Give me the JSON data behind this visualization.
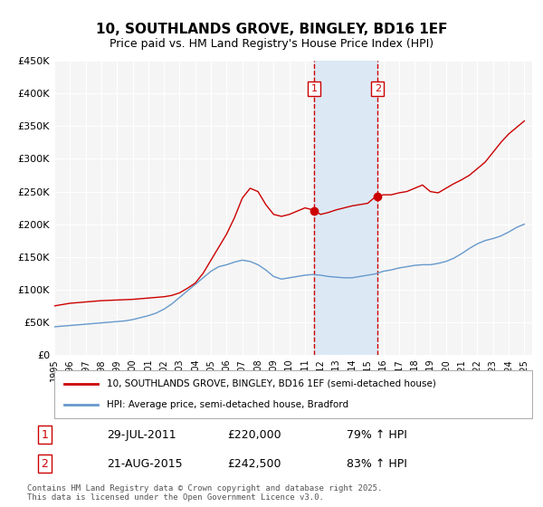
{
  "title": "10, SOUTHLANDS GROVE, BINGLEY, BD16 1EF",
  "subtitle": "Price paid vs. HM Land Registry's House Price Index (HPI)",
  "title_fontsize": 11,
  "subtitle_fontsize": 9,
  "bg_color": "#ffffff",
  "plot_bg_color": "#f5f5f5",
  "grid_color": "#ffffff",
  "red_line_color": "#cc0000",
  "blue_line_color": "#6699cc",
  "shade_color": "#dce9f5",
  "vline_color": "#cc0000",
  "marker1_x": 2011.57,
  "marker1_y": 220000,
  "marker2_x": 2015.64,
  "marker2_y": 242500,
  "marker1_label": "1",
  "marker2_label": "2",
  "vline1_x": 2011.57,
  "vline2_x": 2015.64,
  "xmin": 1995,
  "xmax": 2025.5,
  "ymin": 0,
  "ymax": 450000,
  "yticks": [
    0,
    50000,
    100000,
    150000,
    200000,
    250000,
    300000,
    350000,
    400000,
    450000
  ],
  "ytick_labels": [
    "£0",
    "£50K",
    "£100K",
    "£150K",
    "£200K",
    "£250K",
    "£300K",
    "£350K",
    "£400K",
    "£450K"
  ],
  "xticks": [
    1995,
    1996,
    1997,
    1998,
    1999,
    2000,
    2001,
    2002,
    2003,
    2004,
    2005,
    2006,
    2007,
    2008,
    2009,
    2010,
    2011,
    2012,
    2013,
    2014,
    2015,
    2016,
    2017,
    2018,
    2019,
    2020,
    2021,
    2022,
    2023,
    2024,
    2025
  ],
  "legend_red_label": "10, SOUTHLANDS GROVE, BINGLEY, BD16 1EF (semi-detached house)",
  "legend_blue_label": "HPI: Average price, semi-detached house, Bradford",
  "sale1_date": "29-JUL-2011",
  "sale1_price": "£220,000",
  "sale1_hpi": "79% ↑ HPI",
  "sale2_date": "21-AUG-2015",
  "sale2_price": "£242,500",
  "sale2_hpi": "83% ↑ HPI",
  "footnote": "Contains HM Land Registry data © Crown copyright and database right 2025.\nThis data is licensed under the Open Government Licence v3.0.",
  "red_x": [
    1995.0,
    1995.5,
    1996.0,
    1996.5,
    1997.0,
    1997.5,
    1998.0,
    1998.5,
    1999.0,
    1999.5,
    2000.0,
    2000.5,
    2001.0,
    2001.5,
    2002.0,
    2002.5,
    2003.0,
    2003.5,
    2004.0,
    2004.5,
    2005.0,
    2005.5,
    2006.0,
    2006.5,
    2007.0,
    2007.5,
    2008.0,
    2008.5,
    2009.0,
    2009.5,
    2010.0,
    2010.5,
    2011.0,
    2011.5,
    2012.0,
    2012.5,
    2013.0,
    2013.5,
    2014.0,
    2014.5,
    2015.0,
    2015.5,
    2016.0,
    2016.5,
    2017.0,
    2017.5,
    2018.0,
    2018.5,
    2019.0,
    2019.5,
    2020.0,
    2020.5,
    2021.0,
    2021.5,
    2022.0,
    2022.5,
    2023.0,
    2023.5,
    2024.0,
    2024.5,
    2025.0
  ],
  "red_y": [
    75000,
    77000,
    79000,
    80000,
    81000,
    82000,
    83000,
    83500,
    84000,
    84500,
    85000,
    86000,
    87000,
    88000,
    89000,
    91000,
    95000,
    102000,
    110000,
    125000,
    145000,
    165000,
    185000,
    210000,
    240000,
    255000,
    250000,
    230000,
    215000,
    212000,
    215000,
    220000,
    225000,
    222000,
    215000,
    218000,
    222000,
    225000,
    228000,
    230000,
    232000,
    242000,
    245000,
    245000,
    248000,
    250000,
    255000,
    260000,
    250000,
    248000,
    255000,
    262000,
    268000,
    275000,
    285000,
    295000,
    310000,
    325000,
    338000,
    348000,
    358000
  ],
  "blue_x": [
    1995.0,
    1995.5,
    1996.0,
    1996.5,
    1997.0,
    1997.5,
    1998.0,
    1998.5,
    1999.0,
    1999.5,
    2000.0,
    2000.5,
    2001.0,
    2001.5,
    2002.0,
    2002.5,
    2003.0,
    2003.5,
    2004.0,
    2004.5,
    2005.0,
    2005.5,
    2006.0,
    2006.5,
    2007.0,
    2007.5,
    2008.0,
    2008.5,
    2009.0,
    2009.5,
    2010.0,
    2010.5,
    2011.0,
    2011.5,
    2012.0,
    2012.5,
    2013.0,
    2013.5,
    2014.0,
    2014.5,
    2015.0,
    2015.5,
    2016.0,
    2016.5,
    2017.0,
    2017.5,
    2018.0,
    2018.5,
    2019.0,
    2019.5,
    2020.0,
    2020.5,
    2021.0,
    2021.5,
    2022.0,
    2022.5,
    2023.0,
    2023.5,
    2024.0,
    2024.5,
    2025.0
  ],
  "blue_y": [
    43000,
    44000,
    45000,
    46000,
    47000,
    48000,
    49000,
    50000,
    51000,
    52000,
    54000,
    57000,
    60000,
    64000,
    70000,
    78000,
    88000,
    98000,
    108000,
    118000,
    128000,
    135000,
    138000,
    142000,
    145000,
    143000,
    138000,
    130000,
    120000,
    116000,
    118000,
    120000,
    122000,
    123000,
    122000,
    120000,
    119000,
    118000,
    118000,
    120000,
    122000,
    124000,
    128000,
    130000,
    133000,
    135000,
    137000,
    138000,
    138000,
    140000,
    143000,
    148000,
    155000,
    163000,
    170000,
    175000,
    178000,
    182000,
    188000,
    195000,
    200000
  ]
}
